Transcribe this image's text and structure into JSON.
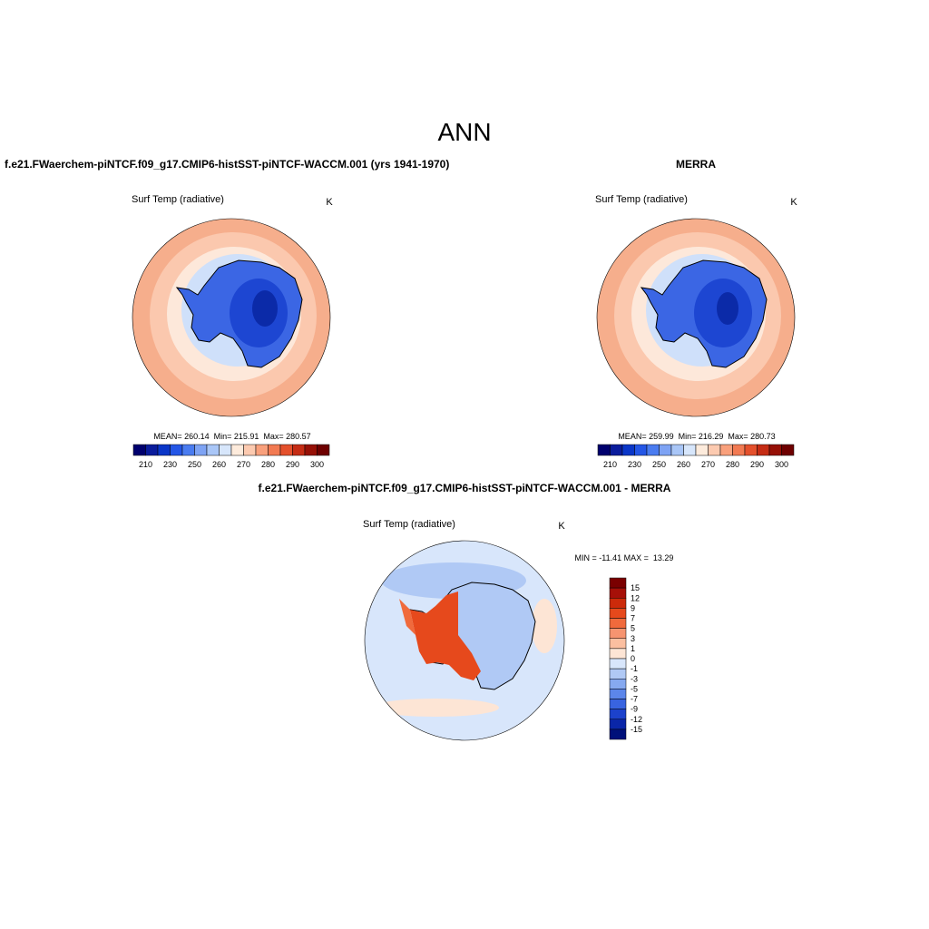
{
  "header": {
    "title": "ANN"
  },
  "panels": [
    {
      "title": "f.e21.FWaerchem-piNTCF.f09_g17.CMIP6-histSST-piNTCF-WACCM.001 (yrs 1941-1970)",
      "variable": "Surf Temp (radiative)",
      "units": "K",
      "stats": "MEAN= 260.14  Min= 215.91  Max= 280.57",
      "colorbar": {
        "colors": [
          "#00006e",
          "#0a1c9c",
          "#0a36c8",
          "#2456e6",
          "#4a7cf0",
          "#7ea3f4",
          "#a9c6f7",
          "#d7e6fb",
          "#fdebdc",
          "#fccab0",
          "#f9a07c",
          "#f27a52",
          "#e4502c",
          "#c52c14",
          "#961006",
          "#6e0000"
        ],
        "labels": [
          210,
          230,
          250,
          260,
          270,
          280,
          290,
          300
        ]
      }
    },
    {
      "title": "MERRA",
      "variable": "Surf Temp (radiative)",
      "units": "K",
      "stats": "MEAN= 259.99  Min= 216.29  Max= 280.73",
      "colorbar": {
        "colors": [
          "#00006e",
          "#0a1c9c",
          "#0a36c8",
          "#2456e6",
          "#4a7cf0",
          "#7ea3f4",
          "#a9c6f7",
          "#d7e6fb",
          "#fdebdc",
          "#fccab0",
          "#f9a07c",
          "#f27a52",
          "#e4502c",
          "#c52c14",
          "#961006",
          "#6e0000"
        ],
        "labels": [
          210,
          230,
          250,
          260,
          270,
          280,
          290,
          300
        ]
      }
    }
  ],
  "difference": {
    "title": "f.e21.FWaerchem-piNTCF.f09_g17.CMIP6-histSST-piNTCF-WACCM.001 - MERRA",
    "variable": "Surf Temp (radiative)",
    "units": "K",
    "stats": "MIN = -11.41 MAX =  13.29",
    "colorbar": {
      "colors": [
        "#7a0000",
        "#a61008",
        "#cc2a0a",
        "#e6491c",
        "#f06a3c",
        "#f69470",
        "#fbbfa0",
        "#fde5d5",
        "#d8e6fb",
        "#b0c9f5",
        "#86a9f0",
        "#5c86ea",
        "#3964e0",
        "#1c42cc",
        "#0a26a8",
        "#00107a"
      ],
      "labels": [
        15,
        12,
        9,
        7,
        5,
        3,
        1,
        0,
        -1,
        -3,
        -5,
        -7,
        -9,
        -12,
        -15
      ]
    }
  }
}
